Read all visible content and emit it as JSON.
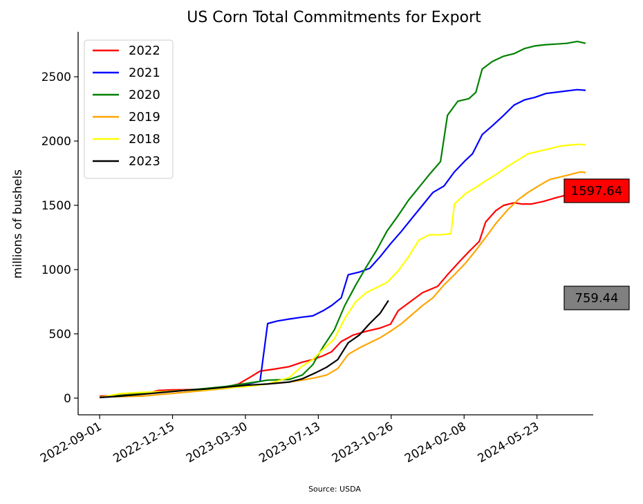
{
  "chart_data": {
    "type": "line",
    "title": "US Corn Total Commitments for Export",
    "ylabel": "millions of bushels",
    "xlabel": "",
    "source": "Source: USDA",
    "ylim": [
      -130,
      2850
    ],
    "xlim": [
      "2022-08-01",
      "2024-08-12"
    ],
    "yticks": [
      0,
      500,
      1000,
      1500,
      2000,
      2500
    ],
    "xticks": [
      "2022-09-01",
      "2022-12-15",
      "2023-03-30",
      "2023-07-13",
      "2023-10-26",
      "2024-02-08",
      "2024-05-23"
    ],
    "legend_position": "top-left",
    "grid": false,
    "series": [
      {
        "name": "2022",
        "color": "#ff0000",
        "points": [
          [
            "2022-09-01",
            15
          ],
          [
            "2022-09-15",
            18
          ],
          [
            "2022-10-01",
            22
          ],
          [
            "2022-10-15",
            30
          ],
          [
            "2022-11-01",
            40
          ],
          [
            "2022-11-10",
            40
          ],
          [
            "2022-11-25",
            60
          ],
          [
            "2022-12-15",
            64
          ],
          [
            "2023-01-01",
            65
          ],
          [
            "2023-01-20",
            68
          ],
          [
            "2023-02-10",
            75
          ],
          [
            "2023-03-01",
            85
          ],
          [
            "2023-03-20",
            110
          ],
          [
            "2023-04-05",
            160
          ],
          [
            "2023-04-20",
            210
          ],
          [
            "2023-05-10",
            225
          ],
          [
            "2023-06-01",
            245
          ],
          [
            "2023-06-20",
            280
          ],
          [
            "2023-07-05",
            300
          ],
          [
            "2023-07-20",
            330
          ],
          [
            "2023-08-01",
            360
          ],
          [
            "2023-08-15",
            440
          ],
          [
            "2023-09-01",
            490
          ],
          [
            "2023-09-20",
            520
          ],
          [
            "2023-10-10",
            545
          ],
          [
            "2023-10-25",
            575
          ],
          [
            "2023-11-05",
            680
          ],
          [
            "2023-11-20",
            740
          ],
          [
            "2023-12-10",
            820
          ],
          [
            "2024-01-01",
            870
          ],
          [
            "2024-01-15",
            960
          ],
          [
            "2024-02-01",
            1060
          ],
          [
            "2024-02-15",
            1140
          ],
          [
            "2024-03-01",
            1220
          ],
          [
            "2024-03-10",
            1370
          ],
          [
            "2024-03-25",
            1460
          ],
          [
            "2024-04-05",
            1500
          ],
          [
            "2024-04-20",
            1520
          ],
          [
            "2024-05-01",
            1510
          ],
          [
            "2024-05-15",
            1510
          ],
          [
            "2024-06-01",
            1530
          ],
          [
            "2024-06-20",
            1560
          ],
          [
            "2024-07-05",
            1580
          ],
          [
            "2024-07-20",
            1590
          ],
          [
            "2024-08-01",
            1597.64
          ]
        ]
      },
      {
        "name": "2021",
        "color": "#0000ff",
        "points": [
          [
            "2022-09-01",
            5
          ],
          [
            "2022-10-01",
            15
          ],
          [
            "2022-11-01",
            35
          ],
          [
            "2022-12-01",
            50
          ],
          [
            "2023-01-01",
            60
          ],
          [
            "2023-02-01",
            70
          ],
          [
            "2023-03-01",
            85
          ],
          [
            "2023-04-01",
            110
          ],
          [
            "2023-04-20",
            130
          ],
          [
            "2023-05-01",
            580
          ],
          [
            "2023-05-15",
            600
          ],
          [
            "2023-06-01",
            615
          ],
          [
            "2023-06-20",
            630
          ],
          [
            "2023-07-05",
            640
          ],
          [
            "2023-07-20",
            680
          ],
          [
            "2023-08-01",
            720
          ],
          [
            "2023-08-15",
            780
          ],
          [
            "2023-08-25",
            960
          ],
          [
            "2023-09-10",
            980
          ],
          [
            "2023-09-25",
            1010
          ],
          [
            "2023-10-10",
            1100
          ],
          [
            "2023-10-25",
            1200
          ],
          [
            "2023-11-10",
            1300
          ],
          [
            "2023-11-25",
            1400
          ],
          [
            "2023-12-10",
            1500
          ],
          [
            "2023-12-25",
            1600
          ],
          [
            "2024-01-10",
            1650
          ],
          [
            "2024-01-25",
            1760
          ],
          [
            "2024-02-10",
            1850
          ],
          [
            "2024-02-20",
            1900
          ],
          [
            "2024-03-05",
            2050
          ],
          [
            "2024-03-20",
            2120
          ],
          [
            "2024-04-05",
            2200
          ],
          [
            "2024-04-20",
            2280
          ],
          [
            "2024-05-05",
            2320
          ],
          [
            "2024-05-20",
            2340
          ],
          [
            "2024-06-05",
            2370
          ],
          [
            "2024-06-20",
            2380
          ],
          [
            "2024-07-05",
            2390
          ],
          [
            "2024-07-20",
            2400
          ],
          [
            "2024-08-01",
            2395
          ]
        ]
      },
      {
        "name": "2020",
        "color": "#008000",
        "points": [
          [
            "2022-09-01",
            10
          ],
          [
            "2022-10-01",
            20
          ],
          [
            "2022-11-01",
            35
          ],
          [
            "2022-12-01",
            50
          ],
          [
            "2023-01-01",
            60
          ],
          [
            "2023-02-01",
            75
          ],
          [
            "2023-03-01",
            90
          ],
          [
            "2023-04-01",
            115
          ],
          [
            "2023-05-01",
            140
          ],
          [
            "2023-06-01",
            145
          ],
          [
            "2023-06-20",
            180
          ],
          [
            "2023-07-05",
            260
          ],
          [
            "2023-07-20",
            400
          ],
          [
            "2023-08-05",
            530
          ],
          [
            "2023-08-20",
            720
          ],
          [
            "2023-09-05",
            880
          ],
          [
            "2023-09-20",
            1020
          ],
          [
            "2023-10-05",
            1150
          ],
          [
            "2023-10-20",
            1300
          ],
          [
            "2023-11-05",
            1420
          ],
          [
            "2023-11-20",
            1540
          ],
          [
            "2023-12-05",
            1640
          ],
          [
            "2023-12-20",
            1740
          ],
          [
            "2024-01-05",
            1840
          ],
          [
            "2024-01-15",
            2200
          ],
          [
            "2024-01-30",
            2310
          ],
          [
            "2024-02-15",
            2330
          ],
          [
            "2024-02-25",
            2380
          ],
          [
            "2024-03-05",
            2560
          ],
          [
            "2024-03-20",
            2620
          ],
          [
            "2024-04-05",
            2660
          ],
          [
            "2024-04-20",
            2680
          ],
          [
            "2024-05-05",
            2720
          ],
          [
            "2024-05-20",
            2740
          ],
          [
            "2024-06-05",
            2750
          ],
          [
            "2024-06-20",
            2755
          ],
          [
            "2024-07-05",
            2760
          ],
          [
            "2024-07-20",
            2775
          ],
          [
            "2024-08-01",
            2760
          ]
        ]
      },
      {
        "name": "2019",
        "color": "#ffa500",
        "points": [
          [
            "2022-09-01",
            10
          ],
          [
            "2022-10-01",
            12
          ],
          [
            "2022-11-01",
            15
          ],
          [
            "2022-12-01",
            30
          ],
          [
            "2023-01-01",
            45
          ],
          [
            "2023-02-01",
            60
          ],
          [
            "2023-03-01",
            75
          ],
          [
            "2023-04-01",
            95
          ],
          [
            "2023-05-01",
            110
          ],
          [
            "2023-06-01",
            125
          ],
          [
            "2023-06-20",
            140
          ],
          [
            "2023-07-10",
            160
          ],
          [
            "2023-07-25",
            180
          ],
          [
            "2023-08-10",
            230
          ],
          [
            "2023-08-25",
            340
          ],
          [
            "2023-09-10",
            390
          ],
          [
            "2023-09-25",
            430
          ],
          [
            "2023-10-10",
            470
          ],
          [
            "2023-10-25",
            520
          ],
          [
            "2023-11-10",
            580
          ],
          [
            "2023-11-25",
            650
          ],
          [
            "2023-12-10",
            720
          ],
          [
            "2023-12-25",
            780
          ],
          [
            "2024-01-10",
            880
          ],
          [
            "2024-01-25",
            960
          ],
          [
            "2024-02-10",
            1050
          ],
          [
            "2024-02-25",
            1150
          ],
          [
            "2024-03-10",
            1250
          ],
          [
            "2024-03-25",
            1360
          ],
          [
            "2024-04-10",
            1460
          ],
          [
            "2024-04-25",
            1540
          ],
          [
            "2024-05-10",
            1600
          ],
          [
            "2024-05-25",
            1650
          ],
          [
            "2024-06-10",
            1700
          ],
          [
            "2024-06-25",
            1720
          ],
          [
            "2024-07-10",
            1740
          ],
          [
            "2024-07-25",
            1760
          ],
          [
            "2024-08-01",
            1755
          ]
        ]
      },
      {
        "name": "2018",
        "color": "#ffff00",
        "points": [
          [
            "2022-09-01",
            5
          ],
          [
            "2022-10-01",
            35
          ],
          [
            "2022-11-01",
            45
          ],
          [
            "2022-12-01",
            50
          ],
          [
            "2023-01-01",
            60
          ],
          [
            "2023-02-01",
            65
          ],
          [
            "2023-03-01",
            80
          ],
          [
            "2023-04-01",
            90
          ],
          [
            "2023-05-01",
            110
          ],
          [
            "2023-06-01",
            160
          ],
          [
            "2023-06-20",
            250
          ],
          [
            "2023-07-05",
            300
          ],
          [
            "2023-07-20",
            380
          ],
          [
            "2023-08-05",
            460
          ],
          [
            "2023-08-20",
            620
          ],
          [
            "2023-09-05",
            750
          ],
          [
            "2023-09-20",
            820
          ],
          [
            "2023-10-05",
            860
          ],
          [
            "2023-10-20",
            900
          ],
          [
            "2023-11-05",
            990
          ],
          [
            "2023-11-20",
            1100
          ],
          [
            "2023-12-05",
            1230
          ],
          [
            "2023-12-20",
            1270
          ],
          [
            "2024-01-05",
            1270
          ],
          [
            "2024-01-20",
            1280
          ],
          [
            "2024-01-25",
            1510
          ],
          [
            "2024-02-10",
            1590
          ],
          [
            "2024-02-25",
            1640
          ],
          [
            "2024-03-10",
            1690
          ],
          [
            "2024-03-25",
            1740
          ],
          [
            "2024-04-10",
            1800
          ],
          [
            "2024-04-25",
            1850
          ],
          [
            "2024-05-10",
            1900
          ],
          [
            "2024-05-25",
            1920
          ],
          [
            "2024-06-10",
            1940
          ],
          [
            "2024-06-25",
            1960
          ],
          [
            "2024-07-10",
            1970
          ],
          [
            "2024-07-25",
            1975
          ],
          [
            "2024-08-01",
            1970
          ]
        ]
      },
      {
        "name": "2023",
        "color": "#000000",
        "points": [
          [
            "2022-09-01",
            5
          ],
          [
            "2022-10-01",
            15
          ],
          [
            "2022-11-01",
            30
          ],
          [
            "2022-12-01",
            45
          ],
          [
            "2023-01-01",
            60
          ],
          [
            "2023-02-01",
            70
          ],
          [
            "2023-03-01",
            85
          ],
          [
            "2023-04-01",
            100
          ],
          [
            "2023-05-01",
            110
          ],
          [
            "2023-06-01",
            125
          ],
          [
            "2023-06-20",
            150
          ],
          [
            "2023-07-10",
            200
          ],
          [
            "2023-07-25",
            240
          ],
          [
            "2023-08-10",
            300
          ],
          [
            "2023-08-25",
            430
          ],
          [
            "2023-09-10",
            490
          ],
          [
            "2023-09-25",
            580
          ],
          [
            "2023-10-10",
            660
          ],
          [
            "2023-10-22",
            759.44
          ]
        ]
      }
    ],
    "annotations": [
      {
        "label": "1597.64",
        "value": 1597.64,
        "color": "#ff0000"
      },
      {
        "label": "759.44",
        "value": 759.44,
        "color": "#808080"
      }
    ]
  }
}
